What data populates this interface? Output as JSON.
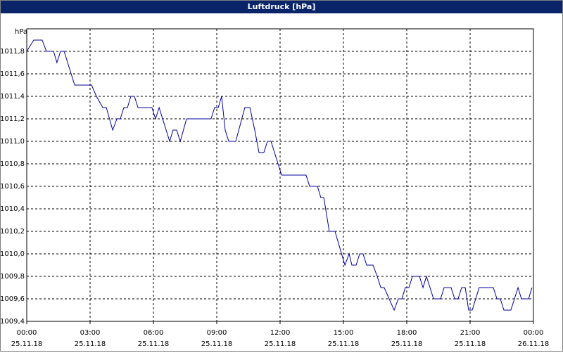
{
  "chart_data": {
    "type": "line",
    "title": "Luftdruck [hPa]",
    "y_label": "hPa",
    "ylim": [
      1009.4,
      1012.0
    ],
    "yticks": [
      {
        "value": 1009.4,
        "label": "1009,4"
      },
      {
        "value": 1009.6,
        "label": "1009,6"
      },
      {
        "value": 1009.8,
        "label": "1009,8"
      },
      {
        "value": 1010.0,
        "label": "1010,0"
      },
      {
        "value": 1010.2,
        "label": "1010,2"
      },
      {
        "value": 1010.4,
        "label": "1010,4"
      },
      {
        "value": 1010.6,
        "label": "1010,6"
      },
      {
        "value": 1010.8,
        "label": "1010,8"
      },
      {
        "value": 1011.0,
        "label": "1011,0"
      },
      {
        "value": 1011.2,
        "label": "1011,2"
      },
      {
        "value": 1011.4,
        "label": "1011,4"
      },
      {
        "value": 1011.6,
        "label": "1011,6"
      },
      {
        "value": 1011.8,
        "label": "1011,8"
      }
    ],
    "xlim": [
      0,
      24
    ],
    "xticks": [
      {
        "value": 0,
        "label": "00:00"
      },
      {
        "value": 3,
        "label": "03:00"
      },
      {
        "value": 6,
        "label": "06:00"
      },
      {
        "value": 9,
        "label": "09:00"
      },
      {
        "value": 12,
        "label": "12:00"
      },
      {
        "value": 15,
        "label": "15:00"
      },
      {
        "value": 18,
        "label": "18:00"
      },
      {
        "value": 21,
        "label": "21:00"
      },
      {
        "value": 24,
        "label": "00:00"
      }
    ],
    "xtick_dates": [
      "25.11.18",
      "25.11.18",
      "25.11.18",
      "25.11.18",
      "25.11.18",
      "25.11.18",
      "25.11.18",
      "25.11.18",
      "26.11.18"
    ],
    "grid": true,
    "series": [
      {
        "name": "Luftdruck",
        "color": "#0000a0",
        "x": [
          0,
          0.33,
          0.73,
          0.93,
          1.27,
          1.43,
          1.6,
          1.77,
          2.27,
          3.07,
          3.3,
          3.6,
          3.77,
          4.07,
          4.27,
          4.43,
          4.6,
          4.77,
          4.93,
          5.1,
          5.27,
          5.93,
          6.1,
          6.27,
          6.77,
          6.93,
          7.1,
          7.27,
          7.57,
          8.73,
          8.9,
          9.07,
          9.23,
          9.4,
          9.57,
          9.9,
          10.33,
          10.57,
          10.8,
          11,
          11.23,
          11.4,
          11.57,
          12.07,
          13.23,
          13.4,
          13.77,
          13.93,
          14.07,
          14.33,
          14.6,
          15.07,
          15.27,
          15.4,
          15.6,
          15.77,
          15.93,
          16.1,
          16.4,
          16.6,
          16.77,
          16.93,
          17.4,
          17.6,
          17.77,
          17.93,
          18.1,
          18.27,
          18.6,
          18.77,
          18.93,
          19.27,
          19.6,
          19.77,
          20.1,
          20.27,
          20.43,
          20.6,
          20.77,
          20.93,
          21.1,
          21.43,
          22.1,
          22.27,
          22.43,
          22.6,
          22.93,
          23.27,
          23.43,
          23.77,
          23.93
        ],
        "values": [
          1011.8,
          1011.9,
          1011.9,
          1011.8,
          1011.8,
          1011.7,
          1011.8,
          1011.8,
          1011.5,
          1011.5,
          1011.4,
          1011.3,
          1011.3,
          1011.1,
          1011.2,
          1011.2,
          1011.3,
          1011.3,
          1011.4,
          1011.4,
          1011.3,
          1011.3,
          1011.2,
          1011.3,
          1011.0,
          1011.1,
          1011.1,
          1011.0,
          1011.2,
          1011.2,
          1011.3,
          1011.3,
          1011.4,
          1011.1,
          1011.0,
          1011.0,
          1011.3,
          1011.3,
          1011.1,
          1010.9,
          1010.9,
          1011.0,
          1011.0,
          1010.7,
          1010.7,
          1010.6,
          1010.6,
          1010.5,
          1010.5,
          1010.2,
          1010.2,
          1009.9,
          1010.0,
          1009.9,
          1009.9,
          1010.0,
          1010.0,
          1009.9,
          1009.9,
          1009.8,
          1009.7,
          1009.7,
          1009.5,
          1009.6,
          1009.6,
          1009.7,
          1009.7,
          1009.8,
          1009.8,
          1009.7,
          1009.8,
          1009.6,
          1009.6,
          1009.7,
          1009.7,
          1009.6,
          1009.6,
          1009.7,
          1009.7,
          1009.5,
          1009.5,
          1009.7,
          1009.7,
          1009.6,
          1009.6,
          1009.5,
          1009.5,
          1009.7,
          1009.6,
          1009.6,
          1009.7
        ]
      }
    ]
  }
}
